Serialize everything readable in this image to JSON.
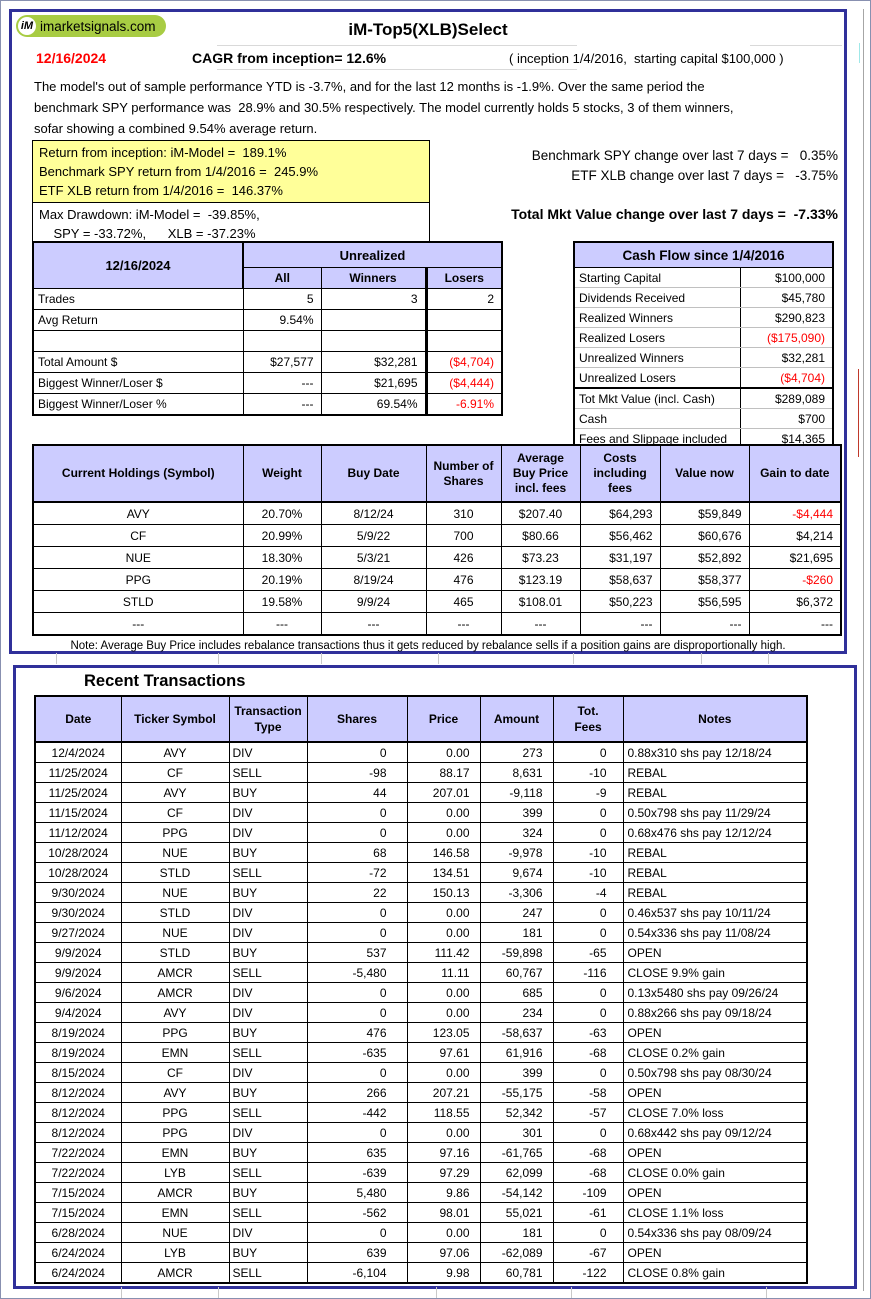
{
  "colors": {
    "frame_navy": "#30309a",
    "header_lavender": "#ccccff",
    "highlight_yellow": "#ffff99",
    "negative_red": "#ff0000",
    "logo_green": "#a8cc43"
  },
  "logo": {
    "badge": "iM",
    "text": "imarketsignals.com"
  },
  "header": {
    "title": "iM-Top5(XLB)Select",
    "date": "12/16/2024",
    "cagr": "CAGR from inception= 12.6%",
    "inception_note": "( inception 1/4/2016,  starting capital $100,000 )",
    "summary_lines": [
      "The model's out of sample performance YTD is -3.7%, and for the last 12 months is -1.9%. Over the same period the",
      "benchmark SPY performance was  28.9% and 30.5% respectively. The model currently holds 5 stocks, 3 of them winners,",
      "sofar showing a combined 9.54% average return."
    ]
  },
  "returns_box": {
    "highlight_lines": [
      "Return from inception: iM-Model =  189.1%",
      "Benchmark SPY return from 1/4/2016 =  245.9%",
      "ETF XLB return from 1/4/2016 =  146.37%"
    ],
    "drawdown_lines": [
      "Max Drawdown: iM-Model =  -39.85%,",
      "    SPY = -33.72%,      XLB = -37.23%"
    ]
  },
  "week_changes": {
    "spy": "Benchmark SPY change over last 7 days =   0.35%",
    "xlb": "ETF XLB change over last 7 days =   -3.75%",
    "total": "Total Mkt Value change over last 7 days =  -7.33%"
  },
  "unrealized_table": {
    "date_header": "12/16/2024",
    "group_header": "Unrealized",
    "columns": [
      "All",
      "Winners",
      "Losers"
    ],
    "rows": [
      {
        "label": "Trades",
        "all": "5",
        "winners": "3",
        "losers": "2",
        "red": false
      },
      {
        "label": "Avg Return",
        "all": "9.54%",
        "winners": "",
        "losers": "",
        "red": false
      },
      {
        "label": "",
        "all": "",
        "winners": "",
        "losers": "",
        "red": false
      },
      {
        "label": "Total Amount $",
        "all": "$27,577",
        "winners": "$32,281",
        "losers": "($4,704)",
        "red": true
      },
      {
        "label": "Biggest Winner/Loser $",
        "all": "---",
        "winners": "$21,695",
        "losers": "($4,444)",
        "red": true
      },
      {
        "label": "Biggest Winner/Loser %",
        "all": "---",
        "winners": "69.54%",
        "losers": "-6.91%",
        "red": true
      }
    ]
  },
  "cash_flow": {
    "title": "Cash Flow since 1/4/2016",
    "rows": [
      {
        "label": "Starting Capital",
        "value": "$100,000",
        "red": false,
        "sep": ""
      },
      {
        "label": "Dividends Received",
        "value": "$45,780",
        "red": false,
        "sep": ""
      },
      {
        "label": "Realized Winners",
        "value": "$290,823",
        "red": false,
        "sep": ""
      },
      {
        "label": "Realized Losers",
        "value": "($175,090)",
        "red": true,
        "sep": ""
      },
      {
        "label": "Unrealized Winners",
        "value": "$32,281",
        "red": false,
        "sep": ""
      },
      {
        "label": "Unrealized Losers",
        "value": "($4,704)",
        "red": true,
        "sep": ""
      },
      {
        "label": "Tot Mkt Value (incl. Cash)",
        "value": "$289,089",
        "red": false,
        "sep": "strong"
      },
      {
        "label": "Cash",
        "value": "$700",
        "red": false,
        "sep": "thin"
      },
      {
        "label": "Fees and Slippage included",
        "value": "$14,365",
        "red": false,
        "sep": "thin"
      }
    ]
  },
  "holdings": {
    "columns": [
      "Current Holdings  (Symbol)",
      "Weight",
      "Buy Date",
      "Number of\nShares",
      "Average\nBuy Price\nincl. fees",
      "Costs\nincluding\nfees",
      "Value now",
      "Gain to date"
    ],
    "rows": [
      {
        "cells": [
          "AVY",
          "20.70%",
          "8/12/24",
          "310",
          "$207.40",
          "$64,293",
          "$59,849",
          "-$4,444"
        ],
        "gain_red": true
      },
      {
        "cells": [
          "CF",
          "20.99%",
          "5/9/22",
          "700",
          "$80.66",
          "$56,462",
          "$60,676",
          "$4,214"
        ],
        "gain_red": false
      },
      {
        "cells": [
          "NUE",
          "18.30%",
          "5/3/21",
          "426",
          "$73.23",
          "$31,197",
          "$52,892",
          "$21,695"
        ],
        "gain_red": false
      },
      {
        "cells": [
          "PPG",
          "20.19%",
          "8/19/24",
          "476",
          "$123.19",
          "$58,637",
          "$58,377",
          "-$260"
        ],
        "gain_red": true
      },
      {
        "cells": [
          "STLD",
          "19.58%",
          "9/9/24",
          "465",
          "$108.01",
          "$50,223",
          "$56,595",
          "$6,372"
        ],
        "gain_red": false
      },
      {
        "cells": [
          "---",
          "---",
          "---",
          "---",
          "---",
          "---",
          "---",
          "---"
        ],
        "gain_red": false
      }
    ],
    "note": "Note: Average Buy Price includes rebalance transactions thus it gets reduced by rebalance sells if a position gains are disproportionally high."
  },
  "transactions": {
    "title": "Recent Transactions",
    "columns": [
      "Date",
      "Ticker Symbol",
      "Transaction\nType",
      "Shares",
      "Price",
      "Amount",
      "Tot.\nFees",
      "Notes"
    ],
    "rows": [
      [
        "12/4/2024",
        "AVY",
        "DIV",
        "0",
        "0.00",
        "273",
        "0",
        "0.88x310 shs pay 12/18/24"
      ],
      [
        "11/25/2024",
        "CF",
        "SELL",
        "-98",
        "88.17",
        "8,631",
        "-10",
        "REBAL"
      ],
      [
        "11/25/2024",
        "AVY",
        "BUY",
        "44",
        "207.01",
        "-9,118",
        "-9",
        "REBAL"
      ],
      [
        "11/15/2024",
        "CF",
        "DIV",
        "0",
        "0.00",
        "399",
        "0",
        "0.50x798 shs pay 11/29/24"
      ],
      [
        "11/12/2024",
        "PPG",
        "DIV",
        "0",
        "0.00",
        "324",
        "0",
        "0.68x476 shs pay 12/12/24"
      ],
      [
        "10/28/2024",
        "NUE",
        "BUY",
        "68",
        "146.58",
        "-9,978",
        "-10",
        "REBAL"
      ],
      [
        "10/28/2024",
        "STLD",
        "SELL",
        "-72",
        "134.51",
        "9,674",
        "-10",
        "REBAL"
      ],
      [
        "9/30/2024",
        "NUE",
        "BUY",
        "22",
        "150.13",
        "-3,306",
        "-4",
        "REBAL"
      ],
      [
        "9/30/2024",
        "STLD",
        "DIV",
        "0",
        "0.00",
        "247",
        "0",
        "0.46x537 shs pay 10/11/24"
      ],
      [
        "9/27/2024",
        "NUE",
        "DIV",
        "0",
        "0.00",
        "181",
        "0",
        "0.54x336 shs pay 11/08/24"
      ],
      [
        "9/9/2024",
        "STLD",
        "BUY",
        "537",
        "111.42",
        "-59,898",
        "-65",
        "OPEN"
      ],
      [
        "9/9/2024",
        "AMCR",
        "SELL",
        "-5,480",
        "11.11",
        "60,767",
        "-116",
        "CLOSE 9.9% gain"
      ],
      [
        "9/6/2024",
        "AMCR",
        "DIV",
        "0",
        "0.00",
        "685",
        "0",
        "0.13x5480 shs pay 09/26/24"
      ],
      [
        "9/4/2024",
        "AVY",
        "DIV",
        "0",
        "0.00",
        "234",
        "0",
        "0.88x266 shs pay 09/18/24"
      ],
      [
        "8/19/2024",
        "PPG",
        "BUY",
        "476",
        "123.05",
        "-58,637",
        "-63",
        "OPEN"
      ],
      [
        "8/19/2024",
        "EMN",
        "SELL",
        "-635",
        "97.61",
        "61,916",
        "-68",
        "CLOSE 0.2% gain"
      ],
      [
        "8/15/2024",
        "CF",
        "DIV",
        "0",
        "0.00",
        "399",
        "0",
        "0.50x798 shs pay 08/30/24"
      ],
      [
        "8/12/2024",
        "AVY",
        "BUY",
        "266",
        "207.21",
        "-55,175",
        "-58",
        "OPEN"
      ],
      [
        "8/12/2024",
        "PPG",
        "SELL",
        "-442",
        "118.55",
        "52,342",
        "-57",
        "CLOSE 7.0% loss"
      ],
      [
        "8/12/2024",
        "PPG",
        "DIV",
        "0",
        "0.00",
        "301",
        "0",
        "0.68x442 shs pay 09/12/24"
      ],
      [
        "7/22/2024",
        "EMN",
        "BUY",
        "635",
        "97.16",
        "-61,765",
        "-68",
        "OPEN"
      ],
      [
        "7/22/2024",
        "LYB",
        "SELL",
        "-639",
        "97.29",
        "62,099",
        "-68",
        "CLOSE 0.0% gain"
      ],
      [
        "7/15/2024",
        "AMCR",
        "BUY",
        "5,480",
        "9.86",
        "-54,142",
        "-109",
        "OPEN"
      ],
      [
        "7/15/2024",
        "EMN",
        "SELL",
        "-562",
        "98.01",
        "55,021",
        "-61",
        "CLOSE 1.1% loss"
      ],
      [
        "6/28/2024",
        "NUE",
        "DIV",
        "0",
        "0.00",
        "181",
        "0",
        "0.54x336 shs pay 08/09/24"
      ],
      [
        "6/24/2024",
        "LYB",
        "BUY",
        "639",
        "97.06",
        "-62,089",
        "-67",
        "OPEN"
      ],
      [
        "6/24/2024",
        "AMCR",
        "SELL",
        "-6,104",
        "9.98",
        "60,781",
        "-122",
        "CLOSE 0.8% gain"
      ]
    ]
  }
}
